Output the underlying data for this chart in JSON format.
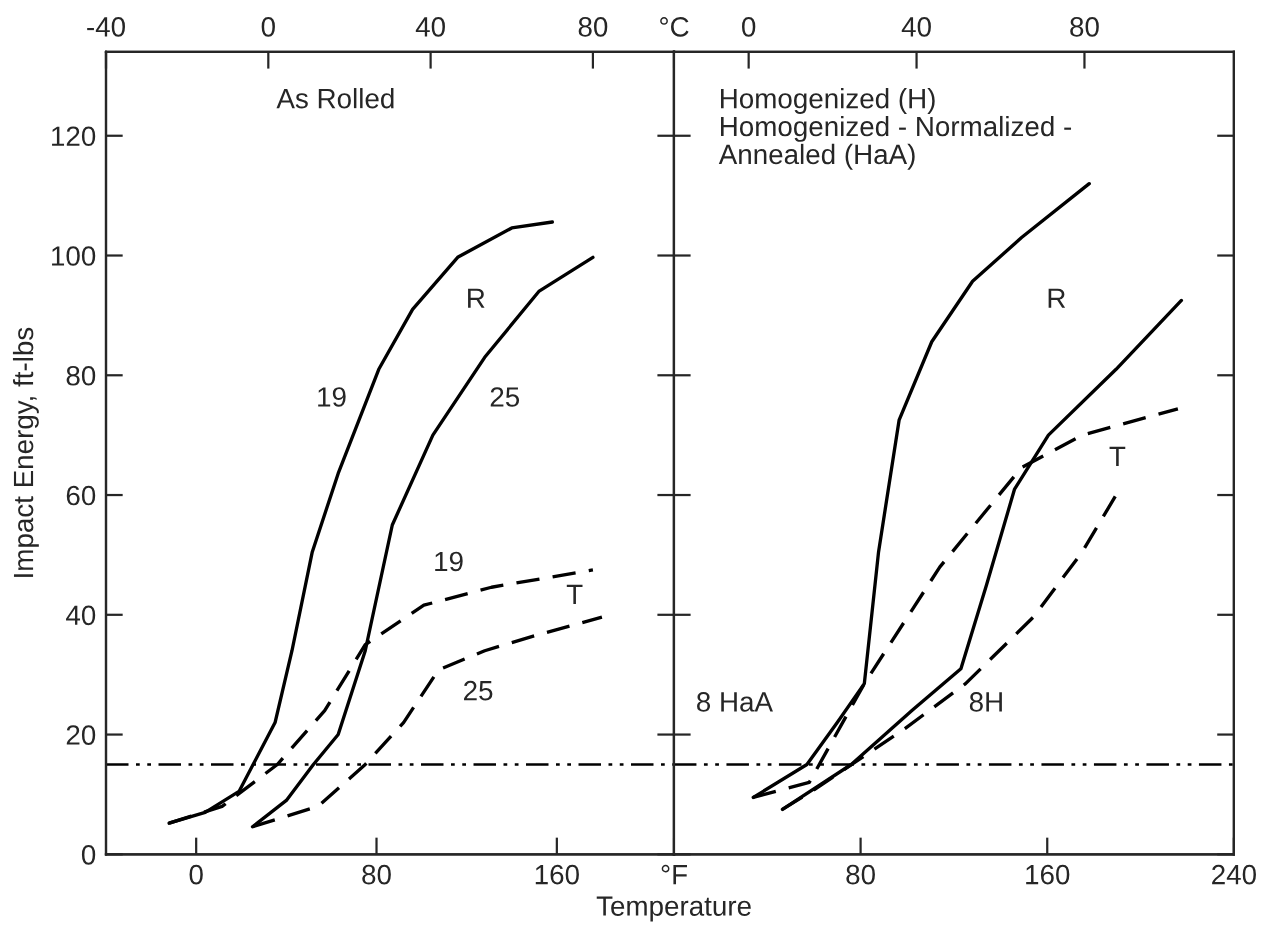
{
  "chart_data": [
    {
      "type": "line",
      "ylabel": "Impact Energy, ft-lbs",
      "xlabel": "Temperature",
      "xlim": [
        -40,
        212
      ],
      "xticks": [
        0,
        80,
        160,
        {
          "value": 212,
          "label": "°F"
        }
      ],
      "x2lim": [
        -40,
        100
      ],
      "x2ticks": [
        -40,
        0,
        40,
        80,
        {
          "value": 100,
          "label": "°C"
        }
      ],
      "ylim": [
        0,
        134
      ],
      "yticks": [
        0,
        20,
        40,
        60,
        80,
        100,
        120
      ],
      "grid": false,
      "legend": false,
      "marker": "none",
      "series": [
        {
          "color": "#000000",
          "line_style": "solid",
          "x": [
            -12,
            4,
            19,
            35,
            42.5,
            51.5,
            63,
            81,
            96,
            116,
            140,
            158
          ],
          "values": [
            5.2,
            7,
            10.5,
            22,
            34,
            50.5,
            63.6,
            81,
            91,
            99.7,
            104.6,
            105.6
          ]
        },
        {
          "color": "#000000",
          "line_style": "solid",
          "x": [
            25,
            40,
            52,
            63,
            75,
            87,
            105,
            128,
            152,
            176
          ],
          "values": [
            4.6,
            9,
            15,
            20,
            34,
            55,
            70,
            83,
            94,
            99.7
          ]
        },
        {
          "color": "#000000",
          "line_style": "dashed",
          "x": [
            -12,
            11.5,
            36,
            57,
            75,
            101,
            131,
            176
          ],
          "values": [
            5.2,
            8,
            15,
            24,
            35,
            41.6,
            44.6,
            47.5
          ]
        },
        {
          "color": "#000000",
          "line_style": "dashed",
          "x": [
            25,
            54,
            75,
            92,
            107.5,
            128,
            152,
            180
          ],
          "values": [
            4.6,
            8,
            15,
            22,
            30.8,
            34,
            36.7,
            39.6
          ]
        }
      ],
      "ref_lines": [
        {
          "axis": "y",
          "value": 15,
          "line_style": "dashdot",
          "color": "#000000"
        }
      ],
      "annotations": [
        "As Rolled",
        "R",
        "19",
        "25",
        "19",
        "T",
        "25"
      ]
    },
    {
      "type": "line",
      "tick_labels": "x",
      "xlim": [
        0,
        240
      ],
      "xticks": [
        80,
        160,
        240
      ],
      "x2lim": [
        -17.8,
        115.6
      ],
      "x2ticks": [
        0,
        40,
        80
      ],
      "ylim": [
        0,
        134
      ],
      "yticks": [
        0,
        20,
        40,
        60,
        80,
        100,
        120
      ],
      "grid": false,
      "legend": false,
      "marker": "none",
      "series": [
        {
          "color": "#000000",
          "line_style": "solid",
          "x": [
            34,
            57,
            70,
            81.6,
            87.7,
            96.5,
            110.5,
            128,
            149,
            178
          ],
          "values": [
            9.5,
            15,
            22,
            28.5,
            50.5,
            72.5,
            85.6,
            95.7,
            103,
            112
          ]
        },
        {
          "color": "#000000",
          "line_style": "solid",
          "x": [
            46.5,
            76,
            102,
            123,
            134,
            146,
            160.5,
            189.5,
            217.5
          ],
          "values": [
            7.5,
            15,
            24,
            31,
            45,
            61,
            70,
            81,
            92.5
          ]
        },
        {
          "color": "#000000",
          "line_style": "dashed",
          "x": [
            34,
            58,
            81.6,
            114,
            149,
            175,
            216
          ],
          "values": [
            9.5,
            12,
            28.5,
            48,
            64.6,
            70,
            74.4
          ]
        },
        {
          "color": "#000000",
          "line_style": "dashed",
          "x": [
            46.5,
            59,
            99,
            125,
            154,
            175,
            189.5
          ],
          "values": [
            7.5,
            10.5,
            21,
            28.5,
            39.6,
            50.5,
            60
          ]
        }
      ],
      "ref_lines": [
        {
          "axis": "y",
          "value": 15,
          "line_style": "dashdot",
          "color": "#000000"
        }
      ],
      "annotations": [
        "Homogenized (H)\nHomogenized - Normalized -\nAnnealed (HaA)",
        "R",
        "T",
        "8 HaA",
        "8H"
      ]
    }
  ]
}
